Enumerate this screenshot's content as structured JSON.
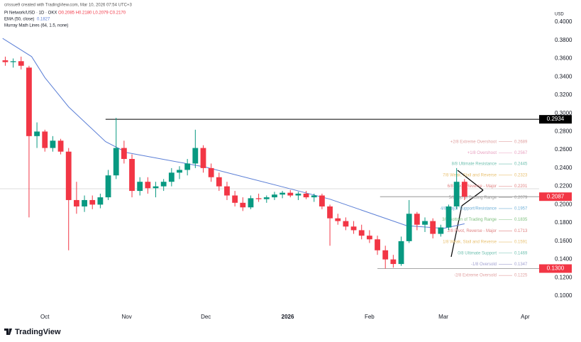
{
  "header": {
    "credit": "crissue9 created with TradingView.com, Mar 10, 2026 07:54 UTC+3",
    "symbol": "Pi Network/USD · 1D · OKX",
    "ohlc": "O0.2085 H0.2180 L0.2079 C0.2170",
    "ema": "EMA (50, close)",
    "ema_value": "0.1827",
    "murray": "Murray Math Lines (64, 1.5, none)",
    "currency": "USD",
    "brand": "TradingView"
  },
  "chart_data": {
    "type": "candlestick",
    "x": [
      -15,
      -12,
      -9,
      -6,
      -3,
      0,
      3,
      6,
      9,
      12,
      15,
      18,
      21,
      24,
      27,
      30,
      33,
      36,
      39,
      42,
      45,
      48,
      51,
      54,
      57,
      60,
      63,
      66,
      69,
      72,
      75,
      78,
      81,
      84,
      87,
      90,
      93,
      96,
      99,
      102,
      105,
      108,
      111,
      114,
      117,
      120,
      123,
      126,
      129,
      132,
      135,
      138,
      141,
      144,
      147,
      150,
      153,
      156,
      159
    ],
    "open": [
      0.358,
      0.356,
      0.357,
      0.35,
      0.275,
      0.28,
      0.262,
      0.27,
      0.258,
      0.205,
      0.198,
      0.205,
      0.2,
      0.208,
      0.232,
      0.262,
      0.25,
      0.215,
      0.225,
      0.218,
      0.22,
      0.225,
      0.235,
      0.238,
      0.245,
      0.262,
      0.24,
      0.23,
      0.22,
      0.21,
      0.202,
      0.197,
      0.207,
      0.206,
      0.208,
      0.211,
      0.213,
      0.21,
      0.212,
      0.208,
      0.21,
      0.198,
      0.185,
      0.182,
      0.176,
      0.172,
      0.166,
      0.162,
      0.15,
      0.14,
      0.135,
      0.16,
      0.19,
      0.178,
      0.182,
      0.168,
      0.175,
      0.198,
      0.225
    ],
    "high": [
      0.362,
      0.36,
      0.362,
      0.352,
      0.29,
      0.282,
      0.275,
      0.272,
      0.262,
      0.225,
      0.21,
      0.21,
      0.212,
      0.238,
      0.295,
      0.27,
      0.255,
      0.23,
      0.23,
      0.225,
      0.228,
      0.24,
      0.242,
      0.25,
      0.282,
      0.265,
      0.245,
      0.235,
      0.225,
      0.215,
      0.208,
      0.21,
      0.212,
      0.21,
      0.214,
      0.215,
      0.216,
      0.214,
      0.215,
      0.212,
      0.212,
      0.2,
      0.19,
      0.186,
      0.182,
      0.178,
      0.172,
      0.166,
      0.155,
      0.145,
      0.165,
      0.205,
      0.192,
      0.186,
      0.185,
      0.178,
      0.2,
      0.24,
      0.228
    ],
    "low": [
      0.352,
      0.35,
      0.348,
      0.186,
      0.262,
      0.258,
      0.258,
      0.255,
      0.15,
      0.19,
      0.192,
      0.195,
      0.196,
      0.205,
      0.228,
      0.245,
      0.208,
      0.21,
      0.212,
      0.208,
      0.215,
      0.22,
      0.228,
      0.232,
      0.24,
      0.235,
      0.225,
      0.215,
      0.205,
      0.198,
      0.193,
      0.195,
      0.203,
      0.202,
      0.205,
      0.207,
      0.208,
      0.205,
      0.206,
      0.203,
      0.195,
      0.155,
      0.178,
      0.172,
      0.168,
      0.162,
      0.158,
      0.145,
      0.13,
      0.131,
      0.133,
      0.158,
      0.172,
      0.17,
      0.163,
      0.165,
      0.172,
      0.195,
      0.205
    ],
    "close": [
      0.356,
      0.357,
      0.352,
      0.275,
      0.28,
      0.262,
      0.27,
      0.258,
      0.205,
      0.198,
      0.205,
      0.2,
      0.208,
      0.232,
      0.262,
      0.25,
      0.215,
      0.225,
      0.218,
      0.22,
      0.225,
      0.235,
      0.238,
      0.245,
      0.262,
      0.24,
      0.23,
      0.22,
      0.21,
      0.202,
      0.197,
      0.207,
      0.206,
      0.208,
      0.211,
      0.213,
      0.21,
      0.212,
      0.208,
      0.21,
      0.198,
      0.185,
      0.182,
      0.176,
      0.172,
      0.166,
      0.162,
      0.15,
      0.14,
      0.135,
      0.16,
      0.19,
      0.178,
      0.182,
      0.168,
      0.175,
      0.198,
      0.225,
      0.2087
    ],
    "up_color": "#089981",
    "down_color": "#f23645",
    "ema": {
      "color": "#5b7fd6",
      "x": [
        -16,
        -5,
        0,
        9,
        23,
        31,
        61,
        92,
        108,
        123,
        137,
        151,
        159
      ],
      "values": [
        0.382,
        0.362,
        0.339,
        0.307,
        0.269,
        0.257,
        0.241,
        0.218,
        0.206,
        0.191,
        0.177,
        0.174,
        0.179
      ]
    },
    "levels": [
      {
        "value": 0.2934,
        "label": "0.2934",
        "from": 23,
        "color": "#000000"
      },
      {
        "value": 0.2087,
        "label": "0.2087",
        "from": 127,
        "color": "#f23645"
      },
      {
        "value": 0.13,
        "label": "0.1300",
        "from": 126,
        "color": "#f23645"
      }
    ],
    "murray": [
      {
        "label": "+2/8 Extreme Overshoot",
        "value": 0.2689
      },
      {
        "label": "+1/8 Overshoot",
        "value": 0.2567
      },
      {
        "label": "8/8 Ultimate Resistance",
        "value": 0.2445
      },
      {
        "label": "7/8 Weak, Stall and Reverse",
        "value": 0.2323
      },
      {
        "label": "6/8 Pivot, Reverse - Major",
        "value": 0.2201
      },
      {
        "label": "5/8 Top of Trading Range",
        "value": 0.2079
      },
      {
        "label": "4/8 Major Support/Resistance",
        "value": 0.1957
      },
      {
        "label": "3/8 Bottom of Trading Range",
        "value": 0.1835
      },
      {
        "label": "2/8 Pivot, Reverse - Major",
        "value": 0.1713
      },
      {
        "label": "1/8 Weak, Stall and Reverse",
        "value": 0.1591
      },
      {
        "label": "0/8 Ultimate Support",
        "value": 0.1469
      },
      {
        "label": "-1/8 Oversold",
        "value": 0.1347
      },
      {
        "label": "-2/8 Extreme Oversold",
        "value": 0.1225
      }
    ],
    "murray_colors": [
      "#e0a0a0",
      "#e8a0c0",
      "#70c0b0",
      "#e8c070",
      "#e08080",
      "#a0a0a0",
      "#70b0d8",
      "#80c080",
      "#e08080",
      "#e8c070",
      "#70c0b0",
      "#a0a0d0",
      "#e0a0a0"
    ],
    "xlim": [
      -17,
      187
    ],
    "ylim": [
      0.09,
      0.424
    ],
    "xticks": [
      {
        "value": 0,
        "label": "Oct"
      },
      {
        "value": 31,
        "label": "Nov"
      },
      {
        "value": 61,
        "label": "Dec"
      },
      {
        "value": 92,
        "label": "2026"
      },
      {
        "value": 123,
        "label": "Feb"
      },
      {
        "value": 151,
        "label": "Mar"
      },
      {
        "value": 182,
        "label": "Apr"
      }
    ],
    "yticks": [
      {
        "value": 0.1,
        "label": "0.1000"
      },
      {
        "value": 0.12,
        "label": "0.1200"
      },
      {
        "value": 0.14,
        "label": "0.1400"
      },
      {
        "value": 0.16,
        "label": "0.1600"
      },
      {
        "value": 0.18,
        "label": "0.1800"
      },
      {
        "value": 0.2,
        "label": "0.2000"
      },
      {
        "value": 0.22,
        "label": "0.2200"
      },
      {
        "value": 0.24,
        "label": "0.2400"
      },
      {
        "value": 0.26,
        "label": "0.2600"
      },
      {
        "value": 0.28,
        "label": "0.2800"
      },
      {
        "value": 0.3,
        "label": "0.3000"
      },
      {
        "value": 0.32,
        "label": "0.3200"
      },
      {
        "value": 0.34,
        "label": "0.3400"
      },
      {
        "value": 0.36,
        "label": "0.3600"
      },
      {
        "value": 0.38,
        "label": "0.3800"
      },
      {
        "value": 0.4,
        "label": "0.4000"
      }
    ]
  }
}
